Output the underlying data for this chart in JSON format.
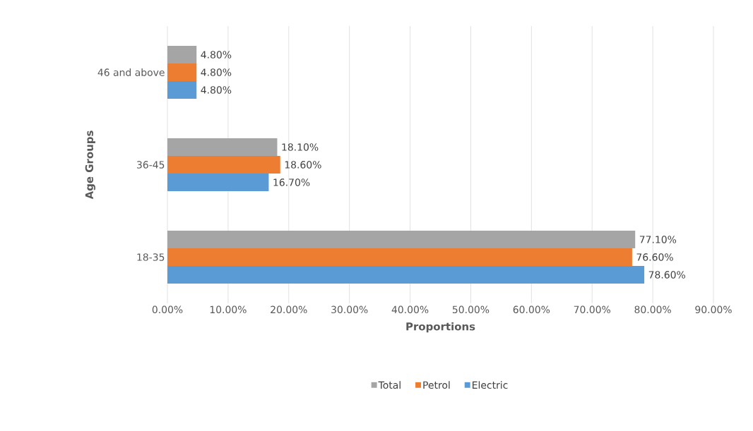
{
  "chart_data": {
    "type": "bar",
    "orientation": "horizontal",
    "xlabel": "Proportions",
    "ylabel": "Age Groups",
    "categories": [
      "46 and above",
      "36-45",
      "18-35"
    ],
    "series": [
      {
        "name": "Total",
        "color": "#a5a5a5",
        "values": [
          4.8,
          18.1,
          77.1
        ],
        "value_labels": [
          "4.80%",
          "18.10%",
          "77.10%"
        ]
      },
      {
        "name": "Petrol",
        "color": "#ed7d31",
        "values": [
          4.8,
          18.6,
          76.6
        ],
        "value_labels": [
          "4.80%",
          "18.60%",
          "76.60%"
        ]
      },
      {
        "name": "Electric",
        "color": "#5b9bd5",
        "values": [
          4.8,
          16.7,
          78.6
        ],
        "value_labels": [
          "4.80%",
          "16.70%",
          "78.60%"
        ]
      }
    ],
    "xlim": [
      0,
      90
    ],
    "xticks": [
      {
        "value": 0,
        "label": "0.00%"
      },
      {
        "value": 10,
        "label": "10.00%"
      },
      {
        "value": 20,
        "label": "20.00%"
      },
      {
        "value": 30,
        "label": "30.00%"
      },
      {
        "value": 40,
        "label": "40.00%"
      },
      {
        "value": 50,
        "label": "50.00%"
      },
      {
        "value": 60,
        "label": "60.00%"
      },
      {
        "value": 70,
        "label": "70.00%"
      },
      {
        "value": 80,
        "label": "80.00%"
      },
      {
        "value": 90,
        "label": "90.00%"
      }
    ],
    "grid": "x",
    "legend": "bottom"
  }
}
